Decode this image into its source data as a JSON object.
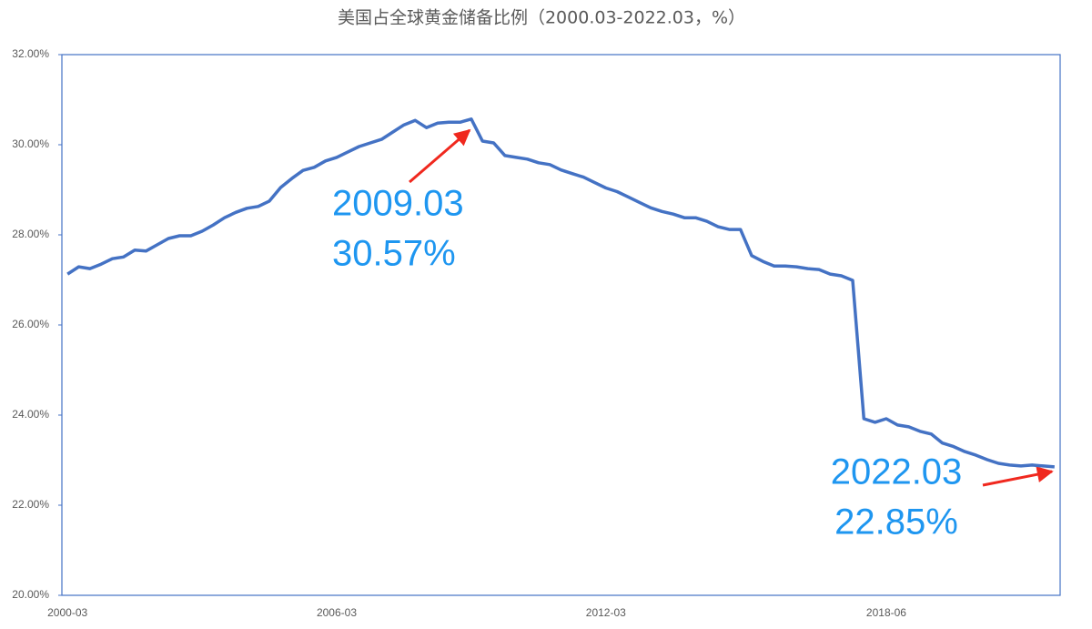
{
  "chart_data": {
    "type": "line",
    "title": "美国占全球黄金储备比例（2000.03-2022.03，%）",
    "categories": [
      "2000-03",
      null,
      null,
      null,
      null,
      null,
      null,
      null,
      null,
      null,
      null,
      null,
      null,
      null,
      null,
      null,
      null,
      null,
      null,
      null,
      null,
      null,
      null,
      null,
      "2006-03",
      null,
      null,
      null,
      null,
      null,
      null,
      null,
      null,
      null,
      null,
      null,
      null,
      null,
      null,
      null,
      null,
      null,
      null,
      null,
      null,
      null,
      null,
      null,
      "2012-03",
      null,
      null,
      null,
      null,
      null,
      null,
      null,
      null,
      null,
      null,
      null,
      null,
      null,
      null,
      null,
      null,
      null,
      null,
      null,
      null,
      null,
      null,
      null,
      null,
      "2018-06",
      null,
      null,
      null,
      null,
      null,
      null,
      null,
      null,
      null,
      null,
      null,
      null,
      null,
      null,
      null
    ],
    "series": [
      {
        "color": "#4472c4",
        "values": [
          27.13,
          27.29,
          27.25,
          27.35,
          27.47,
          27.51,
          27.66,
          27.64,
          27.78,
          27.92,
          27.98,
          27.98,
          28.08,
          28.22,
          28.38,
          28.5,
          28.59,
          28.63,
          28.75,
          29.05,
          29.25,
          29.43,
          29.5,
          29.64,
          29.72,
          29.84,
          29.96,
          30.04,
          30.12,
          30.28,
          30.44,
          30.54,
          30.38,
          30.48,
          30.5,
          30.5,
          30.57,
          30.08,
          30.04,
          29.76,
          29.72,
          29.68,
          29.6,
          29.56,
          29.44,
          29.36,
          29.28,
          29.16,
          29.04,
          28.96,
          28.84,
          28.72,
          28.6,
          28.52,
          28.46,
          28.38,
          28.38,
          28.3,
          28.18,
          28.12,
          28.12,
          27.54,
          27.41,
          27.31,
          27.31,
          27.29,
          27.25,
          27.23,
          27.13,
          27.09,
          26.99,
          23.92,
          23.84,
          23.92,
          23.78,
          23.74,
          23.64,
          23.58,
          23.38,
          23.3,
          23.19,
          23.11,
          23.01,
          22.93,
          22.89,
          22.87,
          22.89,
          22.87,
          22.85
        ]
      }
    ],
    "ylim": [
      20,
      32
    ],
    "yticks": [
      {
        "value": 20,
        "label": "20.00%"
      },
      {
        "value": 22,
        "label": "22.00%"
      },
      {
        "value": 24,
        "label": "24.00%"
      },
      {
        "value": 26,
        "label": "26.00%"
      },
      {
        "value": 28,
        "label": "28.00%"
      },
      {
        "value": 30,
        "label": "30.00%"
      },
      {
        "value": 32,
        "label": "32.00%"
      }
    ],
    "annotations": [
      {
        "lines": [
          "2009.03",
          "30.57%"
        ]
      },
      {
        "lines": [
          "2022.03",
          "22.85%"
        ]
      }
    ]
  }
}
